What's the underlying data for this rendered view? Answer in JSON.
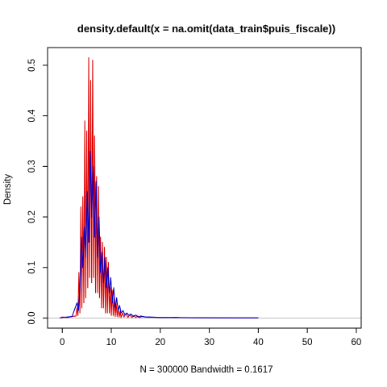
{
  "chart_data": {
    "type": "line",
    "title": "density.default(x = na.omit(data_train$puis_fiscale))",
    "xlabel": "N = 300000   Bandwidth = 0.1617",
    "ylabel": "Density",
    "xlim": [
      -3,
      61
    ],
    "ylim": [
      -0.02,
      0.535
    ],
    "x_ticks": [
      0,
      10,
      20,
      30,
      40,
      50,
      60
    ],
    "x_tick_labels": [
      "0",
      "10",
      "20",
      "30",
      "40",
      "50",
      "60"
    ],
    "y_ticks": [
      0.0,
      0.1,
      0.2,
      0.3,
      0.4,
      0.5
    ],
    "y_tick_labels": [
      "0.0",
      "0.1",
      "0.2",
      "0.3",
      "0.4",
      "0.5"
    ],
    "grid": false,
    "baseline": 0,
    "series": [
      {
        "color": "#dd0000",
        "x": [
          -0.5,
          0,
          1,
          2,
          2.8,
          3.0,
          3.2,
          3.4,
          3.6,
          3.8,
          4.0,
          4.2,
          4.4,
          4.6,
          4.8,
          5.0,
          5.2,
          5.4,
          5.6,
          5.8,
          6.0,
          6.2,
          6.4,
          6.6,
          6.8,
          7.0,
          7.2,
          7.4,
          7.6,
          7.8,
          8.0,
          8.2,
          8.4,
          8.6,
          8.8,
          9.0,
          9.2,
          9.4,
          9.6,
          9.8,
          10.0,
          10.2,
          10.4,
          10.6,
          10.8,
          11.0,
          11.2,
          11.4,
          11.6,
          11.8,
          12.0,
          12.3,
          12.6,
          13.0,
          13.4,
          13.8,
          14.2,
          14.6,
          15.0,
          15.4,
          15.8,
          16.2,
          17.0,
          18.0,
          19.0,
          20.0,
          21.0,
          22.0,
          23.0,
          24.0,
          26.0,
          30.0,
          35.0,
          40.0
        ],
        "y": [
          0,
          0.002,
          0.001,
          0.003,
          0.004,
          0.02,
          0.005,
          0.09,
          0.01,
          0.22,
          0.02,
          0.24,
          0.03,
          0.39,
          0.04,
          0.37,
          0.06,
          0.515,
          0.08,
          0.47,
          0.07,
          0.51,
          0.08,
          0.36,
          0.05,
          0.28,
          0.05,
          0.26,
          0.04,
          0.16,
          0.02,
          0.15,
          0.02,
          0.14,
          0.01,
          0.12,
          0.01,
          0.11,
          0.01,
          0.06,
          0.005,
          0.055,
          0.005,
          0.04,
          0.003,
          0.03,
          0.003,
          0.02,
          0.002,
          0.013,
          0.001,
          0.01,
          0.002,
          0.009,
          0.001,
          0.007,
          0.001,
          0.005,
          0.001,
          0.004,
          0.001,
          0.003,
          0.002,
          0.0015,
          0.0015,
          0.001,
          0.001,
          0.0008,
          0.0015,
          0.0008,
          0.0006,
          0.0004,
          0.0003,
          0.0002
        ]
      },
      {
        "color": "#0000cc",
        "x": [
          -0.5,
          0,
          1,
          2,
          3.0,
          3.3,
          3.6,
          3.9,
          4.2,
          4.5,
          4.8,
          5.1,
          5.4,
          5.7,
          6.0,
          6.3,
          6.6,
          6.9,
          7.2,
          7.5,
          7.8,
          8.1,
          8.4,
          8.7,
          9.0,
          9.3,
          9.6,
          9.9,
          10.2,
          10.5,
          10.8,
          11.1,
          11.4,
          11.7,
          12.0,
          12.4,
          12.8,
          13.2,
          13.6,
          14.0,
          14.5,
          15.0,
          15.5,
          16.0,
          17.0,
          18.0,
          20.0,
          23.0,
          26.0,
          30.0,
          35.0,
          40.0
        ],
        "y": [
          0,
          0.001,
          0.002,
          0.003,
          0.03,
          0.015,
          0.06,
          0.16,
          0.1,
          0.18,
          0.12,
          0.25,
          0.15,
          0.33,
          0.2,
          0.3,
          0.16,
          0.27,
          0.12,
          0.2,
          0.09,
          0.13,
          0.07,
          0.12,
          0.06,
          0.1,
          0.05,
          0.08,
          0.03,
          0.06,
          0.02,
          0.04,
          0.015,
          0.025,
          0.01,
          0.015,
          0.006,
          0.01,
          0.005,
          0.008,
          0.003,
          0.006,
          0.002,
          0.004,
          0.002,
          0.002,
          0.001,
          0.001,
          0.0006,
          0.0004,
          0.0003,
          0.0002
        ]
      }
    ]
  }
}
